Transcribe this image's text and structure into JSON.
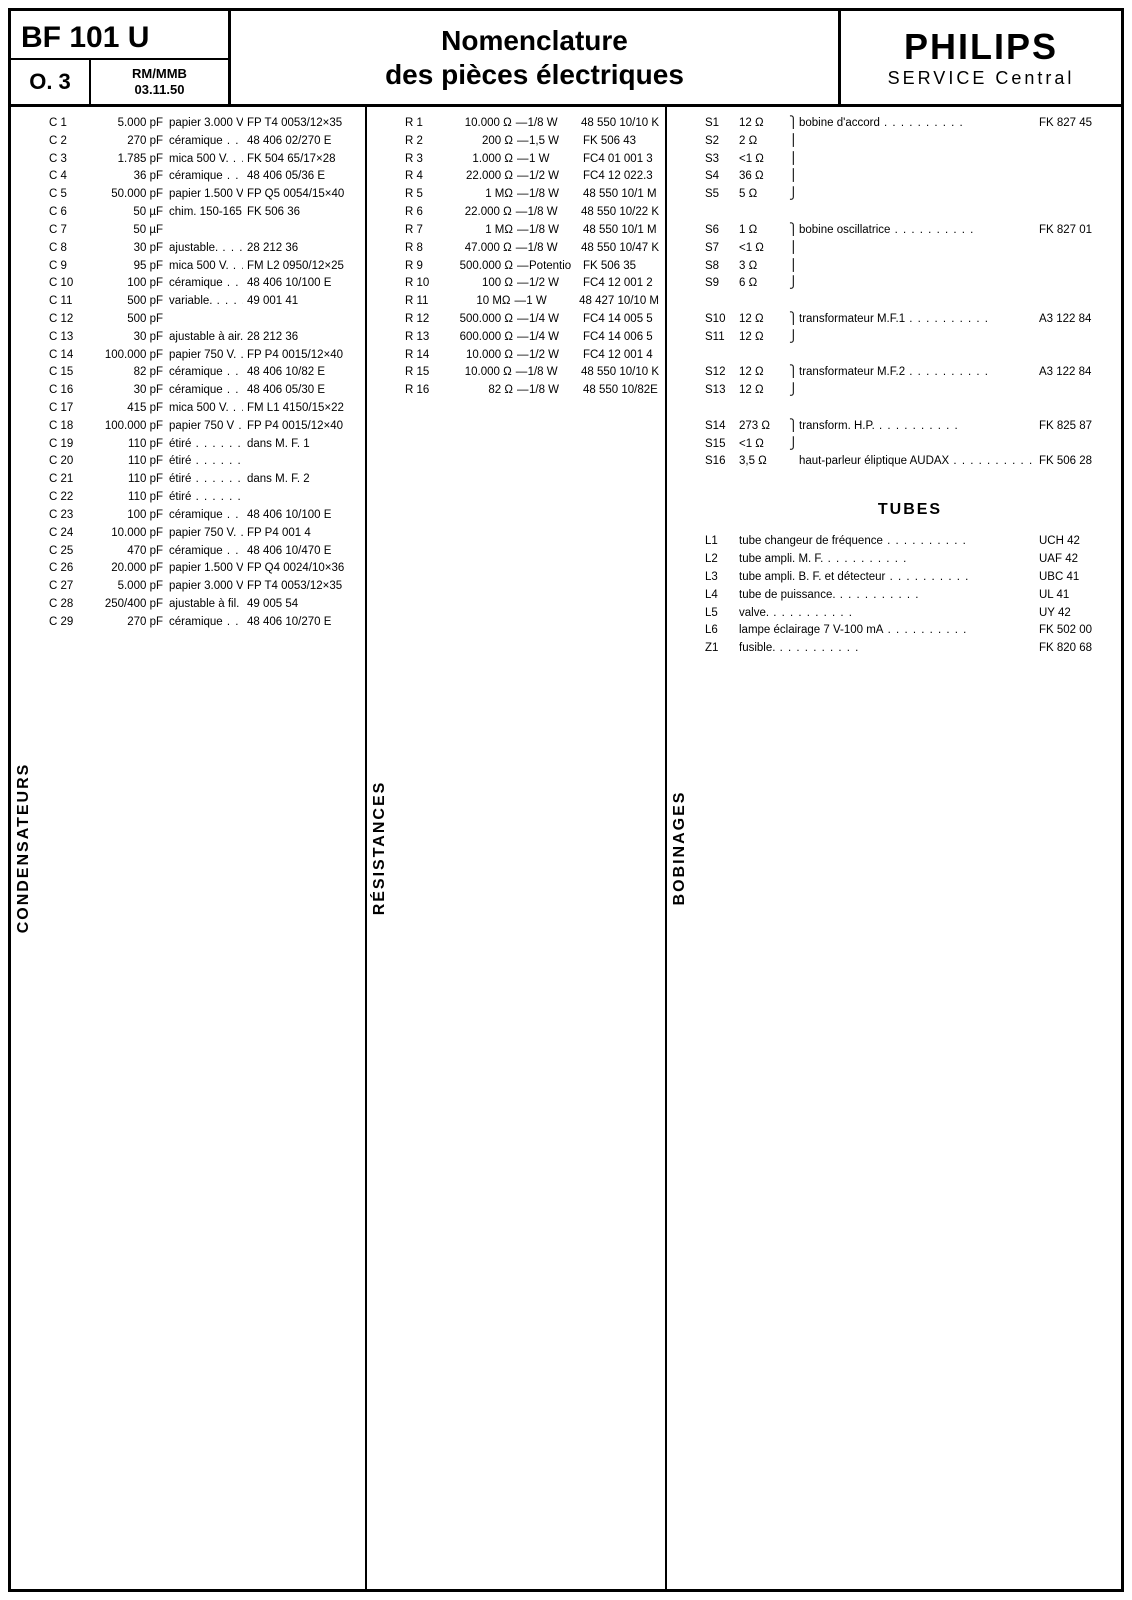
{
  "header": {
    "model": "BF 101 U",
    "rev": "O. 3",
    "code": "RM/MMB",
    "date": "03.11.50",
    "title1": "Nomenclature",
    "title2": "des pièces électriques",
    "brand": "PHILIPS",
    "service": "SERVICE Central"
  },
  "columns": {
    "condensateurs": "CONDENSATEURS",
    "resistances": "RÉSISTANCES",
    "bobinages": "BOBINAGES"
  },
  "condensateurs": [
    {
      "ref": "C  1",
      "val": "5.000 pF",
      "desc": "papier 3.000 V.",
      "code": "FP  T4 0053/12×35"
    },
    {
      "ref": "C  2",
      "val": "270 pF",
      "desc": "céramique",
      "code": "48 406   02/270 E"
    },
    {
      "ref": "C  3",
      "val": "1.785 pF",
      "desc": "mica 500 V.",
      "code": "FK 504   65/17×28"
    },
    {
      "ref": "C  4",
      "val": "36 pF",
      "desc": "céramique",
      "code": "48 406   05/36 E"
    },
    {
      "ref": "C  5",
      "val": "50.000 pF",
      "desc": "papier 1.500 V.",
      "code": "FP  Q5 0054/15×40"
    },
    {
      "ref": "C  6",
      "val": "50 µF",
      "desc": "chim. 150-165 V .",
      "code": "FK 506   36",
      "brace": "open"
    },
    {
      "ref": "C  7",
      "val": "50 µF",
      "desc": "",
      "code": "",
      "brace": "close"
    },
    {
      "ref": "C  8",
      "val": "30 pF",
      "desc": "ajustable.",
      "code": "28 212   36"
    },
    {
      "ref": "C  9",
      "val": "95 pF",
      "desc": "mica 500 V.",
      "code": "FM  L2 0950/12×25"
    },
    {
      "ref": "C 10",
      "val": "100 pF",
      "desc": "céramique",
      "code": "48 406   10/100 E"
    },
    {
      "ref": "C 11",
      "val": "500 pF",
      "desc": "variable.",
      "code": "49 001   41",
      "brace": "open"
    },
    {
      "ref": "C 12",
      "val": "500 pF",
      "desc": "",
      "code": "",
      "brace": "close"
    },
    {
      "ref": "C 13",
      "val": "30 pF",
      "desc": "ajustable à air.",
      "code": "28 212   36"
    },
    {
      "ref": "C 14",
      "val": "100.000 pF",
      "desc": "papier 750 V.",
      "code": "FP  P4 0015/12×40"
    },
    {
      "ref": "C 15",
      "val": "82 pF",
      "desc": "céramique",
      "code": "48 406   10/82 E"
    },
    {
      "ref": "C 16",
      "val": "30 pF",
      "desc": "céramique",
      "code": "48 406   05/30 E"
    },
    {
      "ref": "C 17",
      "val": "415 pF",
      "desc": "mica 500 V.",
      "code": "FM  L1 4150/15×22"
    },
    {
      "ref": "C 18",
      "val": "100.000 pF",
      "desc": "papier 750 V",
      "code": "FP  P4 0015/12×40"
    },
    {
      "ref": "C 19",
      "val": "110 pF",
      "desc": "étiré",
      "code": "dans M. F. 1",
      "brace": "open"
    },
    {
      "ref": "C 20",
      "val": "110 pF",
      "desc": "étiré",
      "code": "",
      "brace": "close"
    },
    {
      "ref": "C 21",
      "val": "110 pF",
      "desc": "étiré",
      "code": "dans M. F. 2",
      "brace": "open"
    },
    {
      "ref": "C 22",
      "val": "110 pF",
      "desc": "étiré",
      "code": "",
      "brace": "close"
    },
    {
      "ref": "C 23",
      "val": "100 pF",
      "desc": "céramique",
      "code": "48 406   10/100 E"
    },
    {
      "ref": "C 24",
      "val": "10.000 pF",
      "desc": "papier 750 V.",
      "code": "FP  P4  001 4"
    },
    {
      "ref": "C 25",
      "val": "470 pF",
      "desc": "céramique",
      "code": "48 406   10/470 E"
    },
    {
      "ref": "C 26",
      "val": "20.000 pF",
      "desc": "papier 1.500 V.",
      "code": "FP  Q4 0024/10×36"
    },
    {
      "ref": "C 27",
      "val": "5.000 pF",
      "desc": "papier 3.000 V.",
      "code": "FP  T4 0053/12×35"
    },
    {
      "ref": "C 28",
      "val": "250/400 pF",
      "desc": "ajustable à fil.",
      "code": "49 005   54"
    },
    {
      "ref": "C 29",
      "val": "270 pF",
      "desc": "céramique",
      "code": "48 406   10/270 E"
    }
  ],
  "resistances": [
    {
      "ref": "R  1",
      "val": "10.000 Ω",
      "pow": "1/8 W",
      "code": "48 550 10/10  K"
    },
    {
      "ref": "R  2",
      "val": "200 Ω",
      "pow": "1,5 W",
      "code": "FK   506  43"
    },
    {
      "ref": "R  3",
      "val": "1.000 Ω",
      "pow": "1 W",
      "code": "FC4  01 001 3"
    },
    {
      "ref": "R  4",
      "val": "22.000 Ω",
      "pow": "1/2 W",
      "code": "FC4  12 022.3"
    },
    {
      "ref": "R  5",
      "val": "1 MΩ",
      "pow": "1/8 W",
      "code": "48 550 10/1 M"
    },
    {
      "ref": "R  6",
      "val": "22.000 Ω",
      "pow": "1/8 W",
      "code": "48 550 10/22  K"
    },
    {
      "ref": "R  7",
      "val": "1 MΩ",
      "pow": "1/8 W",
      "code": "48 550 10/1 M"
    },
    {
      "ref": "R  8",
      "val": "47.000 Ω",
      "pow": "1/8 W",
      "code": "48 550 10/47 K"
    },
    {
      "ref": "R  9",
      "val": "500.000 Ω",
      "pow": "Potentio",
      "code": "FK   506  35"
    },
    {
      "ref": "R 10",
      "val": "100 Ω",
      "pow": "1/2 W",
      "code": "FC4  12 001 2"
    },
    {
      "ref": "R 11",
      "val": "10 MΩ",
      "pow": "1 W",
      "code": "48 427 10/10 M"
    },
    {
      "ref": "R 12",
      "val": "500.000 Ω",
      "pow": "1/4 W",
      "code": "FC4  14 005 5"
    },
    {
      "ref": "R 13",
      "val": "600.000 Ω",
      "pow": "1/4 W",
      "code": "FC4  14 006 5"
    },
    {
      "ref": "R 14",
      "val": "10.000 Ω",
      "pow": "1/2 W",
      "code": "FC4  12 001 4"
    },
    {
      "ref": "R 15",
      "val": "10.000 Ω",
      "pow": "1/8 W",
      "code": "48 550 10/10 K"
    },
    {
      "ref": "R 16",
      "val": "82 Ω",
      "pow": "1/8 W",
      "code": "48 550 10/82E"
    }
  ],
  "bobinages": [
    {
      "ref": "S1",
      "val": "12 Ω",
      "desc": "bobine d'accord",
      "code": "FK 827 45",
      "brace": "open5"
    },
    {
      "ref": "S2",
      "val": "2 Ω",
      "desc": "",
      "code": ""
    },
    {
      "ref": "S3",
      "val": "<1 Ω",
      "desc": "",
      "code": ""
    },
    {
      "ref": "S4",
      "val": "36 Ω",
      "desc": "",
      "code": ""
    },
    {
      "ref": "S5",
      "val": "5 Ω",
      "desc": "",
      "code": "",
      "brace": "close5"
    },
    {
      "ref": "S6",
      "val": "1 Ω",
      "desc": "bobine oscillatrice",
      "code": "FK 827 01",
      "brace": "open4"
    },
    {
      "ref": "S7",
      "val": "<1 Ω",
      "desc": "",
      "code": ""
    },
    {
      "ref": "S8",
      "val": "3 Ω",
      "desc": "",
      "code": ""
    },
    {
      "ref": "S9",
      "val": "6 Ω",
      "desc": "",
      "code": "",
      "brace": "close4"
    },
    {
      "ref": "S10",
      "val": "12 Ω",
      "desc": "transformateur M.F.1",
      "code": "A3 122 84",
      "brace": "open2"
    },
    {
      "ref": "S11",
      "val": "12 Ω",
      "desc": "",
      "code": "",
      "brace": "close2"
    },
    {
      "ref": "S12",
      "val": "12 Ω",
      "desc": "transformateur M.F.2",
      "code": "A3 122 84",
      "brace": "open2"
    },
    {
      "ref": "S13",
      "val": "12 Ω",
      "desc": "",
      "code": "",
      "brace": "close2"
    },
    {
      "ref": "S14",
      "val": "273 Ω",
      "desc": "transform. H.P.",
      "code": "FK 825 87",
      "brace": "open2"
    },
    {
      "ref": "S15",
      "val": "<1 Ω",
      "desc": "",
      "code": "",
      "brace": "close2"
    },
    {
      "ref": "S16",
      "val": "3,5 Ω",
      "desc": "haut-parleur éliptique AUDAX",
      "code": "FK 506 28"
    }
  ],
  "tubes_title": "TUBES",
  "tubes": [
    {
      "ref": "L1",
      "desc": "tube changeur de fréquence",
      "code": "UCH 42"
    },
    {
      "ref": "L2",
      "desc": "tube ampli. M. F.",
      "code": "UAF 42"
    },
    {
      "ref": "L3",
      "desc": "tube ampli. B. F. et détecteur",
      "code": "UBC 41"
    },
    {
      "ref": "L4",
      "desc": "tube de puissance.",
      "code": "UL 41"
    },
    {
      "ref": "L5",
      "desc": "valve.",
      "code": "UY 42"
    },
    {
      "ref": "L6",
      "desc": "lampe éclairage 7 V-100 mA",
      "code": "FK 502 00"
    },
    {
      "ref": "Z1",
      "desc": "fusible.",
      "code": "FK 820 68"
    }
  ]
}
